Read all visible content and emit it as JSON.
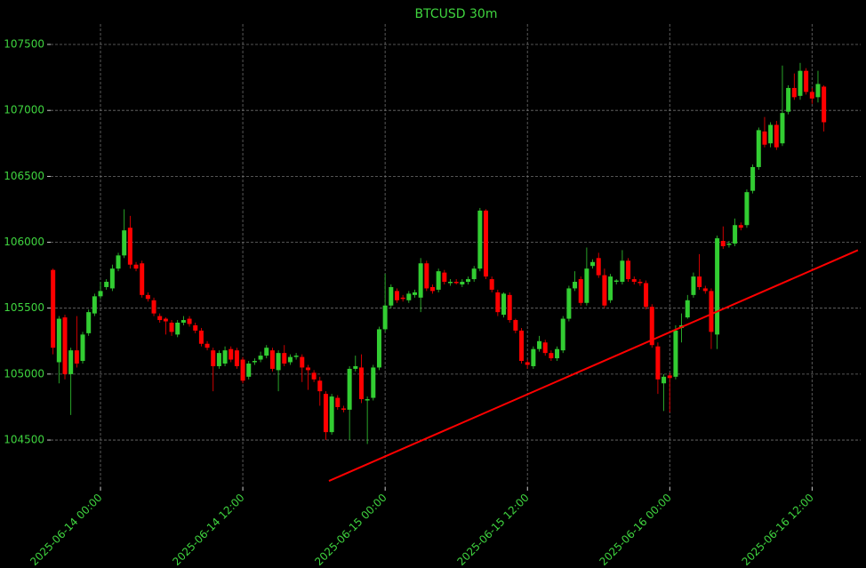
{
  "chart_data": {
    "type": "candlestick",
    "title": "BTCUSD 30m",
    "x": [
      "2025-06-13 20:00",
      "2025-06-13 20:30",
      "2025-06-13 21:00",
      "2025-06-13 21:30",
      "2025-06-13 22:00",
      "2025-06-13 22:30",
      "2025-06-13 23:00",
      "2025-06-13 23:30",
      "2025-06-14 00:00",
      "2025-06-14 00:30",
      "2025-06-14 01:00",
      "2025-06-14 01:30",
      "2025-06-14 02:00",
      "2025-06-14 02:30",
      "2025-06-14 03:00",
      "2025-06-14 03:30",
      "2025-06-14 04:00",
      "2025-06-14 04:30",
      "2025-06-14 05:00",
      "2025-06-14 05:30",
      "2025-06-14 06:00",
      "2025-06-14 06:30",
      "2025-06-14 07:00",
      "2025-06-14 07:30",
      "2025-06-14 08:00",
      "2025-06-14 08:30",
      "2025-06-14 09:00",
      "2025-06-14 09:30",
      "2025-06-14 10:00",
      "2025-06-14 10:30",
      "2025-06-14 11:00",
      "2025-06-14 11:30",
      "2025-06-14 12:00",
      "2025-06-14 12:30",
      "2025-06-14 13:00",
      "2025-06-14 13:30",
      "2025-06-14 14:00",
      "2025-06-14 14:30",
      "2025-06-14 15:00",
      "2025-06-14 15:30",
      "2025-06-14 16:00",
      "2025-06-14 16:30",
      "2025-06-14 17:00",
      "2025-06-14 17:30",
      "2025-06-14 18:00",
      "2025-06-14 18:30",
      "2025-06-14 19:00",
      "2025-06-14 19:30",
      "2025-06-14 20:00",
      "2025-06-14 20:30",
      "2025-06-14 21:00",
      "2025-06-14 21:30",
      "2025-06-14 22:00",
      "2025-06-14 22:30",
      "2025-06-14 23:00",
      "2025-06-14 23:30",
      "2025-06-15 00:00",
      "2025-06-15 00:30",
      "2025-06-15 01:00",
      "2025-06-15 01:30",
      "2025-06-15 02:00",
      "2025-06-15 02:30",
      "2025-06-15 03:00",
      "2025-06-15 03:30",
      "2025-06-15 04:00",
      "2025-06-15 04:30",
      "2025-06-15 05:00",
      "2025-06-15 05:30",
      "2025-06-15 06:00",
      "2025-06-15 06:30",
      "2025-06-15 07:00",
      "2025-06-15 07:30",
      "2025-06-15 08:00",
      "2025-06-15 08:30",
      "2025-06-15 09:00",
      "2025-06-15 09:30",
      "2025-06-15 10:00",
      "2025-06-15 10:30",
      "2025-06-15 11:00",
      "2025-06-15 11:30",
      "2025-06-15 12:00",
      "2025-06-15 12:30",
      "2025-06-15 13:00",
      "2025-06-15 13:30",
      "2025-06-15 14:00",
      "2025-06-15 14:30",
      "2025-06-15 15:00",
      "2025-06-15 15:30",
      "2025-06-15 16:00",
      "2025-06-15 16:30",
      "2025-06-15 17:00",
      "2025-06-15 17:30",
      "2025-06-15 18:00",
      "2025-06-15 18:30",
      "2025-06-15 19:00",
      "2025-06-15 19:30",
      "2025-06-15 20:00",
      "2025-06-15 20:30",
      "2025-06-15 21:00",
      "2025-06-15 21:30",
      "2025-06-15 22:00",
      "2025-06-15 22:30",
      "2025-06-15 23:00",
      "2025-06-15 23:30",
      "2025-06-16 00:00",
      "2025-06-16 00:30",
      "2025-06-16 01:00",
      "2025-06-16 01:30",
      "2025-06-16 02:00",
      "2025-06-16 02:30",
      "2025-06-16 03:00",
      "2025-06-16 03:30",
      "2025-06-16 04:00",
      "2025-06-16 04:30",
      "2025-06-16 05:00",
      "2025-06-16 05:30",
      "2025-06-16 06:00",
      "2025-06-16 06:30",
      "2025-06-16 07:00",
      "2025-06-16 07:30",
      "2025-06-16 08:00",
      "2025-06-16 08:30",
      "2025-06-16 09:00",
      "2025-06-16 09:30",
      "2025-06-16 10:00",
      "2025-06-16 10:30",
      "2025-06-16 11:00",
      "2025-06-16 11:30",
      "2025-06-16 12:00",
      "2025-06-16 12:30",
      "2025-06-16 13:00"
    ],
    "open": [
      105790,
      105090,
      105430,
      105000,
      105180,
      105100,
      105310,
      105460,
      105590,
      105660,
      105650,
      105800,
      105900,
      106110,
      105830,
      105840,
      105600,
      105560,
      105440,
      105420,
      105390,
      105300,
      105390,
      105420,
      105370,
      105330,
      105230,
      105180,
      105060,
      105080,
      105190,
      105180,
      105110,
      104980,
      105090,
      105110,
      105140,
      105180,
      105030,
      105160,
      105090,
      105130,
      105130,
      105050,
      105010,
      104950,
      104850,
      104560,
      104820,
      104740,
      104730,
      105040,
      105050,
      104800,
      104820,
      105050,
      105340,
      105520,
      105630,
      105580,
      105560,
      105600,
      105580,
      105840,
      105660,
      105640,
      105770,
      105690,
      105700,
      105680,
      105700,
      105720,
      105800,
      106240,
      105720,
      105620,
      105450,
      105600,
      105410,
      105330,
      105090,
      105060,
      105190,
      105240,
      105160,
      105120,
      105180,
      105420,
      105650,
      105720,
      105540,
      105820,
      105880,
      105750,
      105560,
      105700,
      105700,
      105860,
      105720,
      105700,
      105690,
      105510,
      105210,
      104930,
      104990,
      104980,
      105350,
      105430,
      105600,
      105740,
      105650,
      105630,
      105300,
      106010,
      105980,
      105990,
      106130,
      106130,
      106390,
      106570,
      106840,
      106750,
      106890,
      106750,
      106990,
      107170,
      107110,
      107300,
      107140,
      107100,
      107180
    ],
    "high": [
      105800,
      105440,
      105450,
      105200,
      105440,
      105320,
      105490,
      105610,
      105700,
      105720,
      105830,
      105920,
      106250,
      106200,
      105850,
      105860,
      105620,
      105580,
      105460,
      105430,
      105410,
      105410,
      105440,
      105440,
      105390,
      105350,
      105250,
      105200,
      105180,
      105210,
      105210,
      105200,
      105130,
      105100,
      105120,
      105170,
      105220,
      105200,
      105180,
      105220,
      105150,
      105160,
      105150,
      105070,
      105030,
      104980,
      104870,
      104850,
      104840,
      104760,
      105060,
      105140,
      105150,
      104830,
      105070,
      105360,
      105760,
      105680,
      105650,
      105600,
      105630,
      105640,
      105880,
      105860,
      105680,
      105800,
      105790,
      105720,
      105720,
      105720,
      105740,
      105820,
      106260,
      106250,
      105740,
      105640,
      105620,
      105620,
      105420,
      105350,
      105110,
      105210,
      105290,
      105260,
      105180,
      105210,
      105440,
      105670,
      105780,
      105740,
      105960,
      105870,
      105920,
      105800,
      105760,
      105720,
      105940,
      105880,
      105740,
      105720,
      105710,
      105530,
      105240,
      105000,
      105010,
      105370,
      105460,
      105600,
      105770,
      105910,
      105670,
      105650,
      106050,
      106120,
      106010,
      106180,
      106150,
      106400,
      106590,
      106870,
      106950,
      106910,
      106920,
      107340,
      107190,
      107280,
      107360,
      107320,
      107170,
      107300,
      107190
    ],
    "low": [
      105150,
      104930,
      104960,
      104690,
      105050,
      105080,
      105290,
      105440,
      105570,
      105640,
      105630,
      105780,
      105880,
      105800,
      105780,
      105580,
      105550,
      105440,
      105390,
      105300,
      105290,
      105280,
      105370,
      105360,
      105310,
      105210,
      105180,
      104870,
      105040,
      105060,
      105090,
      105040,
      104930,
      104960,
      105070,
      105090,
      105120,
      105020,
      104870,
      105060,
      105070,
      105110,
      104940,
      104880,
      104940,
      104760,
      104500,
      104540,
      104730,
      104710,
      104500,
      105020,
      104780,
      104470,
      104800,
      105030,
      105320,
      105500,
      105540,
      105550,
      105540,
      105580,
      105470,
      105630,
      105610,
      105620,
      105680,
      105670,
      105680,
      105660,
      105680,
      105700,
      105780,
      105720,
      105620,
      105440,
      105430,
      105390,
      105310,
      105080,
      105040,
      105040,
      105170,
      105140,
      105100,
      105100,
      105160,
      105400,
      105630,
      105520,
      105520,
      105800,
      105730,
      105500,
      105540,
      105680,
      105680,
      105700,
      105680,
      105670,
      105490,
      105200,
      104850,
      104720,
      104710,
      104960,
      105240,
      105420,
      105580,
      105640,
      105610,
      105190,
      105190,
      105950,
      105960,
      105970,
      106090,
      106110,
      106370,
      106550,
      106720,
      106720,
      106700,
      106730,
      106970,
      107080,
      107080,
      107120,
      107050,
      107060,
      106840
    ],
    "close": [
      105200,
      105420,
      105000,
      105180,
      105080,
      105300,
      105470,
      105590,
      105630,
      105700,
      105800,
      105900,
      106090,
      105830,
      105800,
      105600,
      105570,
      105460,
      105410,
      105400,
      105320,
      105390,
      105410,
      105380,
      105330,
      105230,
      105200,
      105060,
      105160,
      105180,
      105110,
      105060,
      104950,
      105080,
      105100,
      105140,
      105200,
      105040,
      105160,
      105080,
      105130,
      105140,
      105050,
      105030,
      104960,
      104870,
      104560,
      104830,
      104750,
      104730,
      105040,
      105060,
      104810,
      104810,
      105050,
      105340,
      105520,
      105660,
      105560,
      105570,
      105610,
      105620,
      105840,
      105650,
      105630,
      105780,
      105700,
      105700,
      105690,
      105700,
      105720,
      105800,
      106240,
      105740,
      105640,
      105470,
      105610,
      105410,
      105330,
      105100,
      105070,
      105190,
      105250,
      105160,
      105120,
      105190,
      105420,
      105650,
      105700,
      105540,
      105800,
      105850,
      105750,
      105520,
      105740,
      105710,
      105860,
      105720,
      105700,
      105690,
      105510,
      105220,
      104960,
      104980,
      104970,
      105330,
      105370,
      105560,
      105740,
      105660,
      105630,
      105320,
      106030,
      105970,
      105990,
      106130,
      106110,
      106380,
      106570,
      106850,
      106740,
      106890,
      106720,
      106980,
      107170,
      107100,
      107300,
      107140,
      107090,
      107200,
      106910
    ],
    "up_color": "#32cd32",
    "down_color": "#ff0000",
    "xlim": [
      "2025-06-13 19:48",
      "2025-06-16 16:06"
    ],
    "ylim": [
      104143,
      107655
    ],
    "xticks": [
      "2025-06-14 00:00",
      "2025-06-14 12:00",
      "2025-06-15 00:00",
      "2025-06-15 12:00",
      "2025-06-16 00:00",
      "2025-06-16 12:00"
    ],
    "yticks": [
      104500,
      105000,
      105500,
      106000,
      106500,
      107000,
      107500
    ],
    "grid": true,
    "trendline": {
      "x": [
        "2025-06-14 19:16",
        "2025-06-16 15:52"
      ],
      "values": [
        104190,
        105940
      ],
      "color": "#ff0000"
    }
  }
}
